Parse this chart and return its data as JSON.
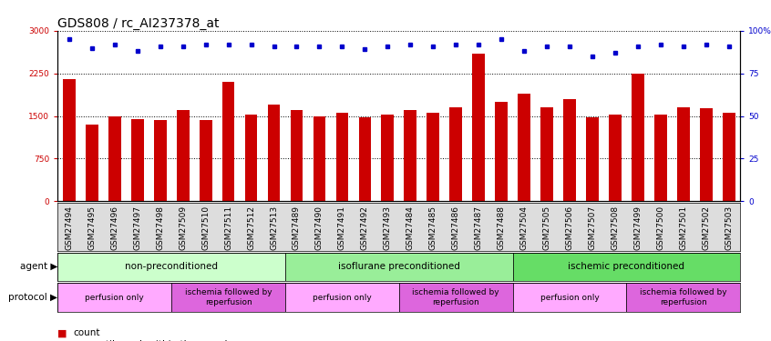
{
  "title": "GDS808 / rc_AI237378_at",
  "samples": [
    "GSM27494",
    "GSM27495",
    "GSM27496",
    "GSM27497",
    "GSM27498",
    "GSM27509",
    "GSM27510",
    "GSM27511",
    "GSM27512",
    "GSM27513",
    "GSM27489",
    "GSM27490",
    "GSM27491",
    "GSM27492",
    "GSM27493",
    "GSM27484",
    "GSM27485",
    "GSM27486",
    "GSM27487",
    "GSM27488",
    "GSM27504",
    "GSM27505",
    "GSM27506",
    "GSM27507",
    "GSM27508",
    "GSM27499",
    "GSM27500",
    "GSM27501",
    "GSM27502",
    "GSM27503"
  ],
  "counts": [
    2150,
    1350,
    1500,
    1450,
    1430,
    1600,
    1430,
    2100,
    1520,
    1700,
    1600,
    1490,
    1560,
    1470,
    1530,
    1610,
    1560,
    1650,
    2600,
    1750,
    1900,
    1650,
    1800,
    1480,
    1530,
    2250,
    1520,
    1650,
    1630,
    1560
  ],
  "percentiles": [
    95,
    90,
    92,
    88,
    91,
    91,
    92,
    92,
    92,
    91,
    91,
    91,
    91,
    89,
    91,
    92,
    91,
    92,
    92,
    95,
    88,
    91,
    91,
    85,
    87,
    91,
    92,
    91,
    92,
    91
  ],
  "bar_color": "#cc0000",
  "dot_color": "#0000cc",
  "ylim_left": [
    0,
    3000
  ],
  "ylim_right": [
    0,
    100
  ],
  "yticks_left": [
    0,
    750,
    1500,
    2250,
    3000
  ],
  "yticks_right": [
    0,
    25,
    50,
    75,
    100
  ],
  "agent_groups": [
    {
      "label": "non-preconditioned",
      "start": 0,
      "end": 9,
      "color": "#ccffcc"
    },
    {
      "label": "isoflurane preconditioned",
      "start": 10,
      "end": 19,
      "color": "#99ee99"
    },
    {
      "label": "ischemic preconditioned",
      "start": 20,
      "end": 29,
      "color": "#66dd66"
    }
  ],
  "protocol_groups": [
    {
      "label": "perfusion only",
      "start": 0,
      "end": 4,
      "color": "#ffaaff"
    },
    {
      "label": "ischemia followed by\nreperfusion",
      "start": 5,
      "end": 9,
      "color": "#dd66dd"
    },
    {
      "label": "perfusion only",
      "start": 10,
      "end": 14,
      "color": "#ffaaff"
    },
    {
      "label": "ischemia followed by\nreperfusion",
      "start": 15,
      "end": 19,
      "color": "#dd66dd"
    },
    {
      "label": "perfusion only",
      "start": 20,
      "end": 24,
      "color": "#ffaaff"
    },
    {
      "label": "ischemia followed by\nreperfusion",
      "start": 25,
      "end": 29,
      "color": "#dd66dd"
    }
  ],
  "agent_label": "agent",
  "protocol_label": "protocol",
  "title_fontsize": 10,
  "tick_fontsize": 6.5,
  "bar_width": 0.55
}
